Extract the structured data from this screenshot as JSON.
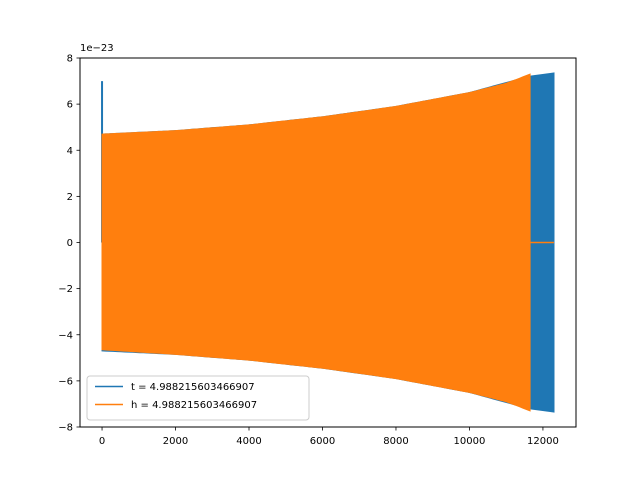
{
  "chart_data": {
    "type": "line",
    "title": "",
    "xlabel": "",
    "ylabel": "",
    "y_offset_label": "1e−23",
    "xlim": [
      -600,
      12900
    ],
    "ylim": [
      -8,
      8
    ],
    "x_ticks": [
      0,
      2000,
      4000,
      6000,
      8000,
      10000,
      12000
    ],
    "x_tick_labels": [
      "0",
      "2000",
      "4000",
      "6000",
      "8000",
      "10000",
      "12000"
    ],
    "y_ticks": [
      -8,
      -6,
      -4,
      -2,
      0,
      2,
      4,
      6,
      8
    ],
    "y_tick_labels": [
      "−8",
      "−6",
      "−4",
      "−2",
      "0",
      "2",
      "4",
      "6",
      "8"
    ],
    "grid": false,
    "legend_position": "lower-left",
    "series": [
      {
        "name": "t = 4.988215603466907",
        "color": "#1f77b4",
        "description_points": {
          "spike_x": 0,
          "spike_value": 7.0,
          "envelope_x": [
            0,
            2000,
            4000,
            6000,
            8000,
            10000,
            11600,
            12300
          ],
          "envelope_upper": [
            4.7,
            4.85,
            5.1,
            5.45,
            5.9,
            6.5,
            7.2,
            7.35
          ],
          "envelope_lower": [
            -4.7,
            -4.85,
            -5.1,
            -5.45,
            -5.9,
            -6.5,
            -7.2,
            -7.35
          ]
        }
      },
      {
        "name": "h = 4.988215603466907",
        "color": "#ff7f0e",
        "description_points": {
          "envelope_x": [
            0,
            2000,
            4000,
            6000,
            8000,
            10000,
            11000,
            11650
          ],
          "envelope_upper": [
            4.7,
            4.85,
            5.1,
            5.45,
            5.9,
            6.5,
            6.9,
            7.3
          ],
          "envelope_lower": [
            -4.65,
            -4.85,
            -5.1,
            -5.45,
            -5.9,
            -6.5,
            -6.9,
            -7.3
          ],
          "tail_x": [
            11650,
            12300
          ],
          "tail_value": 0
        }
      }
    ]
  }
}
